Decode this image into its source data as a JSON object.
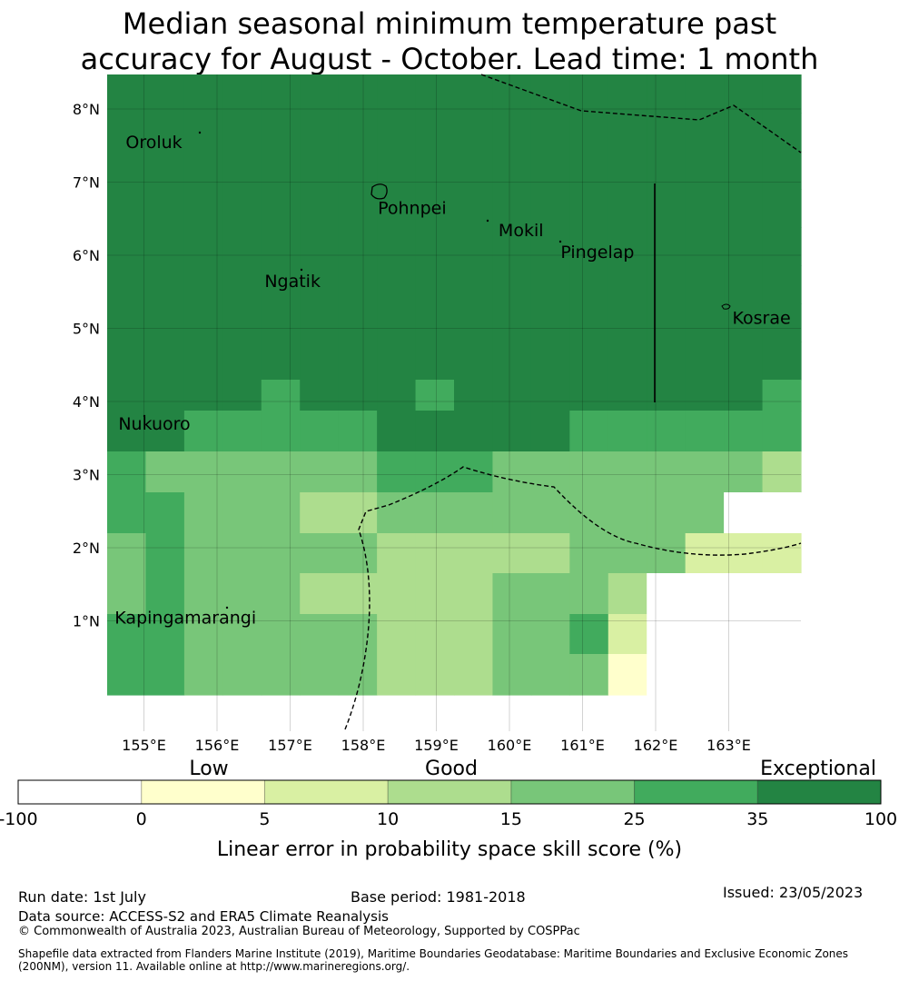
{
  "title_line1": "Median seasonal minimum temperature past",
  "title_line2": "accuracy for August - October. Lead time: 1 month",
  "map": {
    "lon_ticks": [
      "155°E",
      "156°E",
      "157°E",
      "158°E",
      "159°E",
      "160°E",
      "161°E",
      "162°E",
      "163°E"
    ],
    "lat_ticks": [
      "8°N",
      "7°N",
      "6°N",
      "5°N",
      "4°N",
      "3°N",
      "2°N",
      "1°N"
    ],
    "places": [
      {
        "name": "Oroluk",
        "lon": 154.75,
        "lat": 7.55
      },
      {
        "name": "Pohnpei",
        "lon": 158.2,
        "lat": 6.65
      },
      {
        "name": "Mokil",
        "lon": 159.85,
        "lat": 6.35
      },
      {
        "name": "Pingelap",
        "lon": 160.7,
        "lat": 6.05
      },
      {
        "name": "Ngatik",
        "lon": 156.65,
        "lat": 5.65
      },
      {
        "name": "Kosrae",
        "lon": 163.05,
        "lat": 5.15
      },
      {
        "name": "Nukuoro",
        "lon": 154.65,
        "lat": 3.7
      },
      {
        "name": "Kapingamarangi",
        "lon": 154.6,
        "lat": 1.05
      }
    ]
  },
  "colorbar": {
    "categories": [
      {
        "label": "Low",
        "center_value": 0
      },
      {
        "label": "Good",
        "center_value": 15
      },
      {
        "label": "Exceptional",
        "center_value": 100
      }
    ],
    "tick_labels": [
      "-100",
      "0",
      "5",
      "10",
      "15",
      "25",
      "35",
      "100"
    ],
    "colors": [
      "#ffffff",
      "#ffffcc",
      "#d9f0a3",
      "#addd8e",
      "#78c679",
      "#41ab5d",
      "#238443"
    ],
    "xlabel": "Linear error in probability space skill score (%)"
  },
  "footer": {
    "run_date": "Run date: 1st July",
    "base_period": "Base period: 1981-2018",
    "issued": "Issued: 23/05/2023",
    "data_source": "Data source: ACCESS-S2 and ERA5 Climate Reanalysis",
    "copyright": "© Commonwealth of Australia 2023, Australian Bureau of Meteorology, Supported by COSPPac",
    "shapefile": "Shapefile data extracted from Flanders Marine Institute (2019), Maritime Boundaries Geodatabase: Maritime Boundaries and Exclusive Economic Zones (200NM), version 11. Available online at http://www.marineregions.org/."
  },
  "skill_grid": [
    [
      6,
      6,
      6,
      6,
      6,
      6,
      6,
      6,
      6,
      6,
      6,
      6,
      6,
      6,
      6,
      6,
      6,
      6
    ],
    [
      6,
      6,
      6,
      6,
      6,
      6,
      6,
      6,
      6,
      6,
      6,
      6,
      6,
      6,
      6,
      6,
      6,
      6
    ],
    [
      6,
      6,
      6,
      6,
      6,
      6,
      6,
      6,
      6,
      6,
      6,
      6,
      6,
      6,
      6,
      6,
      6,
      6
    ],
    [
      6,
      6,
      6,
      6,
      6,
      6,
      6,
      6,
      6,
      6,
      6,
      6,
      6,
      6,
      6,
      6,
      6,
      6
    ],
    [
      6,
      6,
      6,
      6,
      6,
      6,
      6,
      6,
      6,
      6,
      6,
      6,
      6,
      6,
      6,
      6,
      6,
      6
    ],
    [
      6,
      6,
      6,
      6,
      6,
      6,
      6,
      6,
      6,
      6,
      6,
      6,
      6,
      6,
      6,
      6,
      6,
      6
    ],
    [
      6,
      6,
      6,
      6,
      6,
      6,
      6,
      6,
      6,
      6,
      6,
      6,
      6,
      6,
      6,
      6,
      6,
      6
    ],
    [
      6,
      6,
      6,
      6,
      6,
      6,
      6,
      6,
      6,
      6,
      6,
      6,
      6,
      6,
      6,
      6,
      6,
      6
    ],
    [
      6,
      6,
      6,
      6,
      5,
      6,
      6,
      6,
      5,
      6,
      6,
      6,
      6,
      6,
      6,
      6,
      6,
      5
    ],
    [
      6,
      6,
      5,
      5,
      5,
      5,
      5,
      6,
      6,
      6,
      6,
      6,
      5,
      5,
      5,
      5,
      5,
      5
    ],
    [
      5,
      4,
      4,
      4,
      4,
      4,
      4,
      5,
      5,
      5,
      4,
      4,
      4,
      4,
      4,
      4,
      4,
      3
    ],
    [
      5,
      5,
      4,
      4,
      4,
      3,
      3,
      4,
      4,
      4,
      4,
      4,
      4,
      4,
      4,
      4,
      0,
      0
    ],
    [
      4,
      5,
      4,
      4,
      4,
      4,
      4,
      3,
      3,
      3,
      3,
      3,
      4,
      4,
      4,
      2,
      2,
      2
    ],
    [
      4,
      5,
      4,
      4,
      4,
      3,
      3,
      3,
      3,
      3,
      4,
      4,
      4,
      3,
      0,
      0,
      0,
      0
    ],
    [
      5,
      5,
      4,
      4,
      4,
      4,
      4,
      3,
      3,
      3,
      4,
      4,
      5,
      2,
      0,
      0,
      0,
      0
    ],
    [
      5,
      5,
      4,
      4,
      4,
      4,
      4,
      3,
      3,
      3,
      4,
      4,
      4,
      1,
      0,
      0,
      0,
      0
    ]
  ]
}
